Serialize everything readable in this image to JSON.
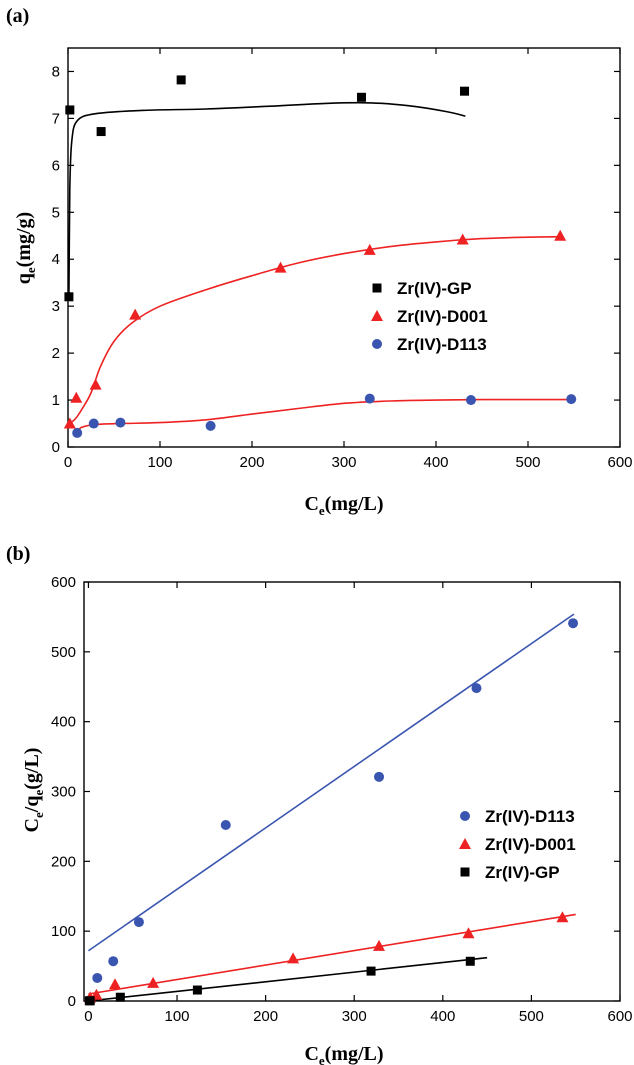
{
  "panels": [
    {
      "label": "(a)",
      "chart_data": {
        "type": "scatter",
        "xlabel": {
          "main": "C",
          "sub": "e",
          "rest": "(mg/L)"
        },
        "ylabel": {
          "main": "q",
          "sub": "e",
          "rest": "(mg/g)"
        },
        "xlim": [
          0,
          600
        ],
        "ylim": [
          0,
          8.5
        ],
        "xticks": [
          0,
          100,
          200,
          300,
          400,
          500,
          600
        ],
        "yticks": [
          0,
          1,
          2,
          3,
          4,
          5,
          6,
          7,
          8
        ],
        "grid": false,
        "legend_position": "center-right",
        "series": [
          {
            "name": "Zr(IV)-GP",
            "marker": "square",
            "color": "#000000",
            "points": [
              [
                1,
                3.2
              ],
              [
                2,
                7.18
              ],
              [
                36,
                6.72
              ],
              [
                123,
                7.82
              ],
              [
                319,
                7.45
              ],
              [
                431,
                7.58
              ]
            ],
            "fit_color": "#000000",
            "fit": [
              [
                1,
                3.2
              ],
              [
                2,
                5.5
              ],
              [
                4,
                6.5
              ],
              [
                10,
                6.95
              ],
              [
                30,
                7.1
              ],
              [
                80,
                7.17
              ],
              [
                150,
                7.2
              ],
              [
                220,
                7.26
              ],
              [
                280,
                7.32
              ],
              [
                330,
                7.33
              ],
              [
                370,
                7.27
              ],
              [
                410,
                7.15
              ],
              [
                432,
                7.05
              ]
            ]
          },
          {
            "name": "Zr(IV)-D001",
            "marker": "triangle",
            "color": "#ee2222",
            "points": [
              [
                2,
                0.5
              ],
              [
                9,
                1.05
              ],
              [
                30,
                1.33
              ],
              [
                73,
                2.82
              ],
              [
                231,
                3.82
              ],
              [
                328,
                4.2
              ],
              [
                429,
                4.42
              ],
              [
                535,
                4.5
              ]
            ],
            "fit_color": "#ee2222",
            "fit": [
              [
                2,
                0.5
              ],
              [
                8,
                0.6
              ],
              [
                15,
                0.8
              ],
              [
                25,
                1.15
              ],
              [
                35,
                1.7
              ],
              [
                50,
                2.25
              ],
              [
                70,
                2.65
              ],
              [
                100,
                3.0
              ],
              [
                150,
                3.35
              ],
              [
                200,
                3.65
              ],
              [
                250,
                3.92
              ],
              [
                300,
                4.12
              ],
              [
                350,
                4.27
              ],
              [
                400,
                4.37
              ],
              [
                450,
                4.44
              ],
              [
                500,
                4.47
              ],
              [
                537,
                4.48
              ]
            ]
          },
          {
            "name": "Zr(IV)-D113",
            "marker": "circle",
            "color": "#3a55b0",
            "points": [
              [
                10,
                0.3
              ],
              [
                28,
                0.5
              ],
              [
                57,
                0.52
              ],
              [
                155,
                0.45
              ],
              [
                328,
                1.03
              ],
              [
                438,
                1.0
              ],
              [
                547,
                1.02
              ]
            ],
            "fit_color": "#ee2222",
            "fit": [
              [
                8,
                0.3
              ],
              [
                15,
                0.42
              ],
              [
                30,
                0.48
              ],
              [
                60,
                0.5
              ],
              [
                100,
                0.52
              ],
              [
                150,
                0.58
              ],
              [
                200,
                0.7
              ],
              [
                250,
                0.82
              ],
              [
                300,
                0.93
              ],
              [
                350,
                0.98
              ],
              [
                400,
                1.0
              ],
              [
                450,
                1.01
              ],
              [
                500,
                1.01
              ],
              [
                547,
                1.01
              ]
            ]
          }
        ]
      }
    },
    {
      "label": "(b)",
      "chart_data": {
        "type": "scatter",
        "xlabel": {
          "main": "C",
          "sub": "e",
          "rest": "(mg/L)"
        },
        "ylabel": {
          "main": "C",
          "sub": "e",
          "mid": "/q",
          "sub2": "e",
          "rest": "(g/L)"
        },
        "xlim": [
          -5,
          600
        ],
        "ylim": [
          0,
          600
        ],
        "xticks": [
          0,
          100,
          200,
          300,
          400,
          500,
          600
        ],
        "yticks": [
          0,
          100,
          200,
          300,
          400,
          500,
          600
        ],
        "grid": false,
        "legend_position": "center-right",
        "series": [
          {
            "name": "Zr(IV)-D113",
            "marker": "circle",
            "color": "#3a55b0",
            "points": [
              [
                10,
                33
              ],
              [
                28,
                57
              ],
              [
                57,
                113
              ],
              [
                155,
                252
              ],
              [
                328,
                321
              ],
              [
                438,
                448
              ],
              [
                547,
                541
              ]
            ],
            "fit_color": "#3a55b0",
            "fit": [
              [
                0,
                72
              ],
              [
                548,
                554
              ]
            ]
          },
          {
            "name": "Zr(IV)-D001",
            "marker": "triangle",
            "color": "#ee2222",
            "points": [
              [
                2,
                5
              ],
              [
                9,
                9
              ],
              [
                30,
                24
              ],
              [
                73,
                26
              ],
              [
                231,
                61
              ],
              [
                328,
                79
              ],
              [
                429,
                97
              ],
              [
                535,
                120
              ]
            ],
            "fit_color": "#ee2222",
            "fit": [
              [
                0,
                10
              ],
              [
                550,
                124
              ]
            ]
          },
          {
            "name": "Zr(IV)-GP",
            "marker": "square",
            "color": "#000000",
            "points": [
              [
                1,
                0.3
              ],
              [
                2,
                0.3
              ],
              [
                36,
                5.4
              ],
              [
                123,
                15.7
              ],
              [
                319,
                42.8
              ],
              [
                431,
                56.9
              ]
            ],
            "fit_color": "#000000",
            "fit": [
              [
                0,
                0
              ],
              [
                450,
                62
              ]
            ]
          }
        ]
      }
    }
  ]
}
